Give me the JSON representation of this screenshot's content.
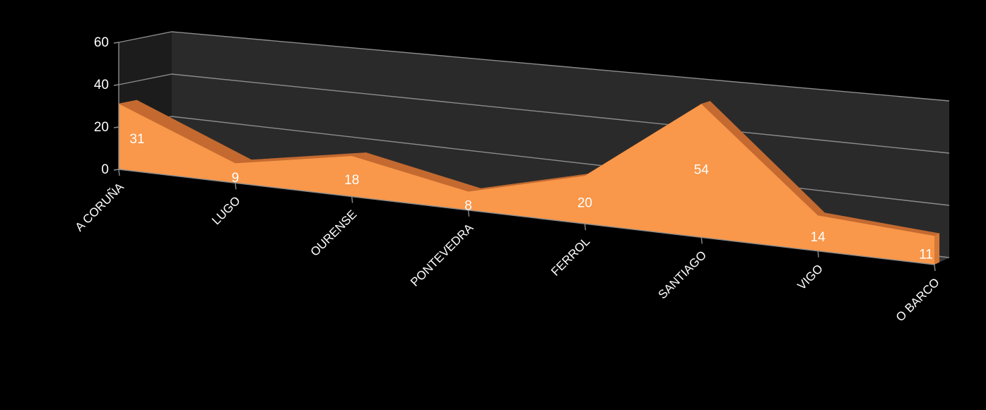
{
  "chart_data": {
    "type": "area",
    "categories": [
      "A CORUÑA",
      "LUGO",
      "OURENSE",
      "PONTEVEDRA",
      "FERROL",
      "SANTIAGO",
      "VIGO",
      "O BARCO"
    ],
    "values": [
      31,
      9,
      18,
      8,
      20,
      54,
      14,
      11
    ],
    "data_labels": [
      "31",
      "9",
      "18",
      "8",
      "20",
      "54",
      "14",
      "11"
    ],
    "y_ticks": [
      "0",
      "20",
      "40",
      "60"
    ],
    "ylim": [
      0,
      60
    ],
    "grid": true,
    "legend": "none",
    "colors": {
      "background": "#000000",
      "wall": "#2a2a2a",
      "floor": "#3a3a3a",
      "gridline": "#8c8c8c",
      "area_front": "#f9974a",
      "area_top": "#c46a30",
      "text": "#ffffff"
    }
  }
}
